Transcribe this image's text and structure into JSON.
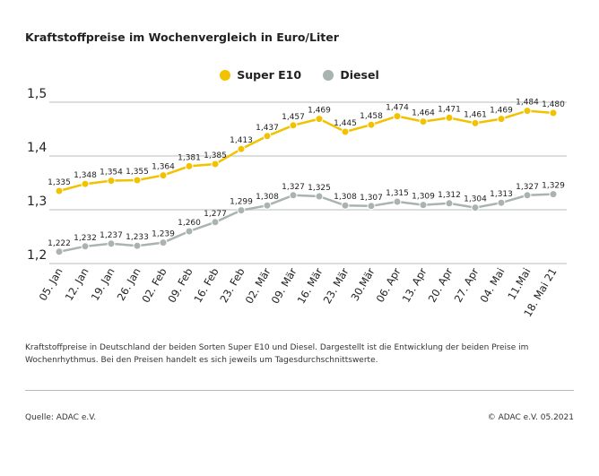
{
  "chart_data": {
    "type": "line",
    "title": "Kraftstoffpreise im Wochenvergleich in Euro/Liter",
    "categories": [
      "05. Jan",
      "12. Jan",
      "19. Jan",
      "26. Jan",
      "02. Feb",
      "09. Feb",
      "16. Feb",
      "23. Feb",
      "02. Mär",
      "09. Mär",
      "16. Mär",
      "23. Mär",
      "30.Mär",
      "06. Apr",
      "13. Apr",
      "20. Apr",
      "27. Apr",
      "04. Mai",
      "11.Mai",
      "18. Mai 21"
    ],
    "series": [
      {
        "name": "Super E10",
        "color": "#f2c200",
        "values": [
          1.335,
          1.348,
          1.354,
          1.355,
          1.364,
          1.381,
          1.385,
          1.413,
          1.437,
          1.457,
          1.469,
          1.445,
          1.458,
          1.474,
          1.464,
          1.471,
          1.461,
          1.469,
          1.484,
          1.48
        ],
        "labels": [
          "1,335",
          "1,348",
          "1,354",
          "1,355",
          "1,364",
          "1,381",
          "1,385",
          "1,413",
          "1,437",
          "1,457",
          "1,469",
          "1,445",
          "1,458",
          "1,474",
          "1,464",
          "1,471",
          "1,461",
          "1,469",
          "1,484",
          "1,480"
        ]
      },
      {
        "name": "Diesel",
        "color": "#a9b3b0",
        "values": [
          1.222,
          1.232,
          1.237,
          1.233,
          1.239,
          1.26,
          1.277,
          1.299,
          1.308,
          1.327,
          1.325,
          1.308,
          1.307,
          1.315,
          1.309,
          1.312,
          1.304,
          1.313,
          1.327,
          1.329
        ],
        "labels": [
          "1,222",
          "1,232",
          "1,237",
          "1,233",
          "1,239",
          "1,260",
          "1,277",
          "1,299",
          "1,308",
          "1,327",
          "1,325",
          "1,308",
          "1,307",
          "1,315",
          "1,309",
          "1,312",
          "1,304",
          "1,313",
          "1,327",
          "1,329"
        ]
      }
    ],
    "yticks": [
      1.5,
      1.4,
      1.3,
      1.2
    ],
    "ytick_labels": [
      "1,5",
      "1,4",
      "1,3",
      "1,2"
    ],
    "ylim": [
      1.2,
      1.5
    ],
    "grid": true,
    "legend": "top-center"
  },
  "note": "Kraftstoffpreise in Deutschland der beiden Sorten Super E10 und Diesel. Dargestellt ist die Entwicklung der beiden Preise im Wochenrhythmus. Bei den Preisen handelt es sich jeweils um Tagesdurchschnittswerte.",
  "source": "Quelle: ADAC e.V.",
  "copyright": "© ADAC e.V. 05.2021"
}
